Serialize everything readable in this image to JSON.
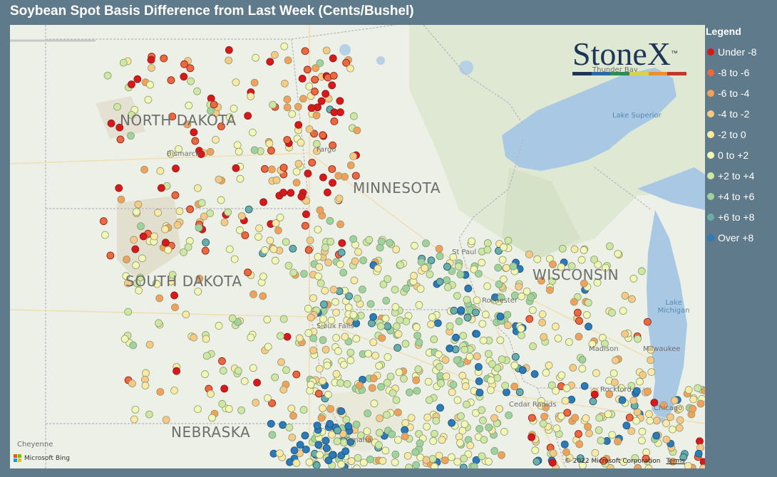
{
  "title": "Soybean Spot Basis Difference from Last Week (Cents/Bushel)",
  "legend": {
    "title": "Legend",
    "items": [
      {
        "label": "Under -8",
        "color": "#d7191c"
      },
      {
        "label": "-8 to -6",
        "color": "#ea6a3e"
      },
      {
        "label": "-6 to -4",
        "color": "#f3a05a"
      },
      {
        "label": "-4 to -2",
        "color": "#f8c986"
      },
      {
        "label": "-2 to 0",
        "color": "#fbe9a6"
      },
      {
        "label": "0 to +2",
        "color": "#f3f7b6"
      },
      {
        "label": "+2 to +4",
        "color": "#cce8a4"
      },
      {
        "label": "+4 to +6",
        "color": "#9dd39e"
      },
      {
        "label": "+6 to +8",
        "color": "#6aafa6"
      },
      {
        "label": "Over +8",
        "color": "#2c7bb6"
      }
    ]
  },
  "map": {
    "state_labels": [
      "NORTH DAKOTA",
      "MINNESOTA",
      "SOUTH DAKOTA",
      "WISCONSIN",
      "NEBRASKA"
    ],
    "city_labels": [
      "Bismarck",
      "Fargo",
      "St Paul",
      "Rochester",
      "Sioux Falls",
      "Madison",
      "Milwaukee",
      "Rockford",
      "Cedar Rapids",
      "Chicago",
      "Omaha",
      "Cheyenne",
      "Thunder Bay"
    ],
    "water_labels": [
      "Lake Superior",
      "Lake Michigan"
    ],
    "attribution": "© 2022 Microsoft Corporation",
    "terms": "Terms",
    "provider": "Microsoft Bing"
  },
  "logo": {
    "text": "StoneX",
    "trademark": "™",
    "stripe_colors": [
      "#1d3557",
      "#2b6aa6",
      "#2e8b57",
      "#d8d34a",
      "#e8912d",
      "#c0392b"
    ]
  }
}
